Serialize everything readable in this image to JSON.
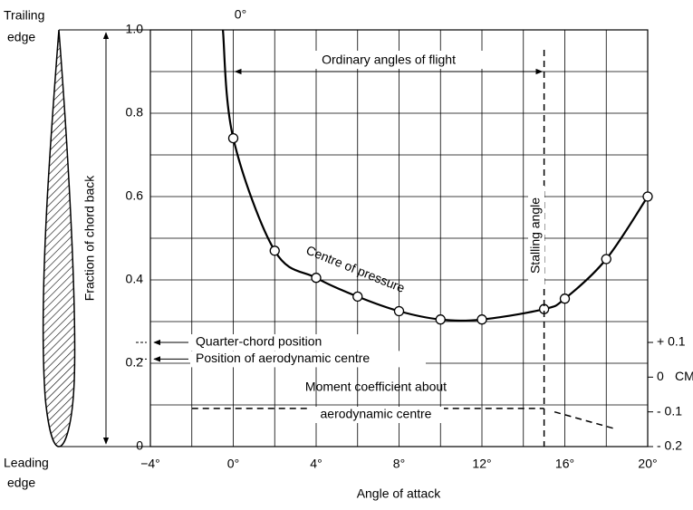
{
  "chart_data": {
    "type": "line",
    "xlabel": "Angle of attack",
    "ylabel": "Fraction of chord back",
    "y2label": "CM",
    "xlim": [
      -4,
      20
    ],
    "xticks": [
      {
        "value": -4,
        "label": "−4°"
      },
      {
        "value": 0,
        "label": "0°"
      },
      {
        "value": 4,
        "label": "4°"
      },
      {
        "value": 8,
        "label": "8°"
      },
      {
        "value": 12,
        "label": "12°"
      },
      {
        "value": 16,
        "label": "16°"
      },
      {
        "value": 20,
        "label": "20°"
      }
    ],
    "ylim": [
      0,
      1.0
    ],
    "yticks": [
      0,
      0.2,
      0.4,
      0.6,
      0.8,
      {
        "value": 1.0,
        "label": "1.0"
      }
    ],
    "y2lim": [
      -0.2,
      1.0
    ],
    "y2ticks": [
      {
        "value": 0.1,
        "label": "+ 0.1"
      },
      0,
      {
        "value": -0.1,
        "label": "- 0.1"
      },
      {
        "value": -0.2,
        "label": "- 0.2"
      }
    ],
    "grid": true,
    "series": [
      {
        "name": "Centre of pressure",
        "color": "#000000",
        "x": [
          -0.5,
          0,
          2,
          4,
          6,
          8,
          10,
          12,
          15,
          16,
          18,
          20
        ],
        "values": [
          1.0,
          0.74,
          0.47,
          0.405,
          0.36,
          0.325,
          0.305,
          0.305,
          0.33,
          0.355,
          0.45,
          0.6
        ],
        "markers": [
          false,
          true,
          true,
          true,
          true,
          true,
          true,
          true,
          true,
          true,
          true,
          true
        ]
      },
      {
        "name": "Moment coefficient about aerodynamic centre",
        "color": "#000000",
        "axis": "y2",
        "dashed": true,
        "x": [
          -2,
          15,
          15.2,
          15.5,
          18.5
        ],
        "values": [
          -0.09,
          -0.09,
          null,
          -0.1,
          -0.15
        ]
      }
    ],
    "annotations": {
      "zero_top": "0°",
      "ordinary": "Ordinary angles of flight",
      "ordinary_range": [
        0,
        15
      ],
      "stalling": "Stalling angle",
      "stalling_x": 15,
      "centre": "Centre of pressure",
      "quarter": "Quarter-chord position",
      "quarter_y": 0.25,
      "aero": "Position of aerodynamic centre",
      "aero_y": 0.21,
      "moment_1": "Moment coefficient about",
      "moment_2": "aerodynamic centre",
      "trailing": [
        "Trailing",
        "edge"
      ],
      "leading": [
        "Leading",
        "edge"
      ]
    }
  }
}
